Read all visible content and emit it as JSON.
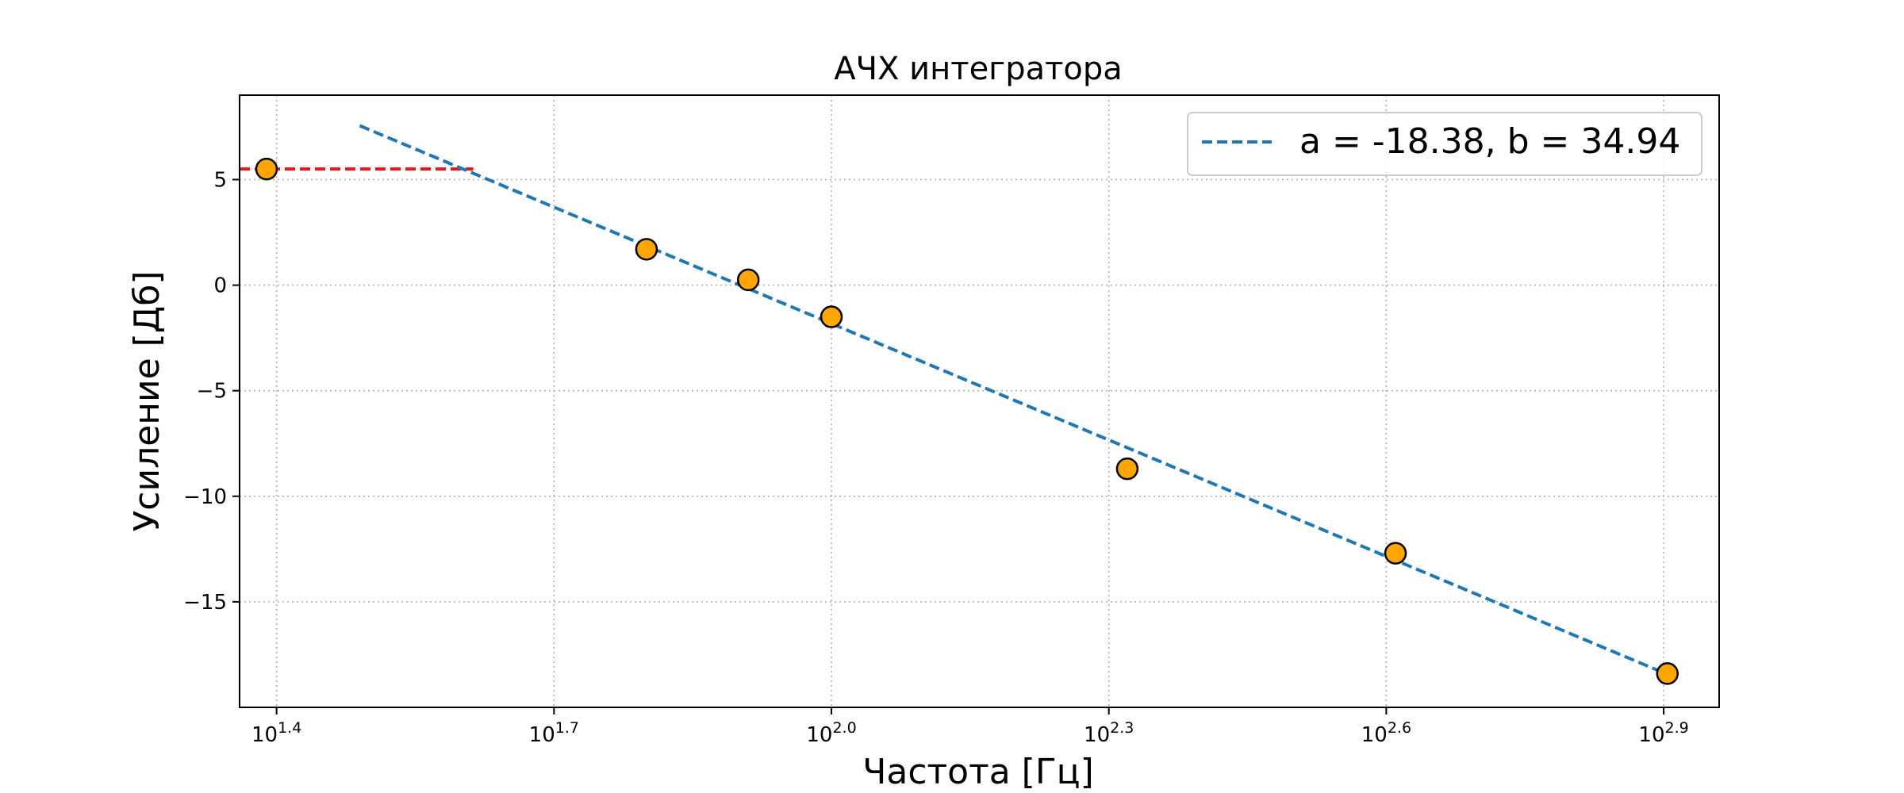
{
  "chart_data": {
    "type": "scatter",
    "title": "АЧХ интегратора",
    "xlabel": "Частота [Гц]",
    "ylabel": "Усиление [Дб]",
    "x_scale": "log10",
    "x_exponent_range": [
      1.36,
      2.96
    ],
    "ylim": [
      -20.0,
      9.0
    ],
    "x_tick_exponents": [
      "1.4",
      "1.7",
      "2.0",
      "2.3",
      "2.6",
      "2.9"
    ],
    "x_tick_base": "10",
    "y_ticks": [
      -15,
      -10,
      -5,
      0,
      5
    ],
    "y_tick_labels": [
      "−15",
      "−10",
      "−5",
      "0",
      "5"
    ],
    "grid": true,
    "points": [
      {
        "x": 24.5,
        "y": 5.5
      },
      {
        "x": 63.1,
        "y": 1.7
      },
      {
        "x": 81.3,
        "y": 0.25
      },
      {
        "x": 100.0,
        "y": -1.5
      },
      {
        "x": 208.9,
        "y": -8.7
      },
      {
        "x": 407.4,
        "y": -12.7
      },
      {
        "x": 801.7,
        "y": -18.4
      }
    ],
    "fit_line": {
      "label": "a = -18.38, b = 34.94",
      "x_range": [
        30.9,
        801.7
      ],
      "color": "#1f77b4"
    },
    "reference_line": {
      "y": 5.5,
      "x_range": [
        22.0,
        41.0
      ],
      "color": "#e31a1c"
    },
    "marker_color": "#ffa500",
    "marker_edge": "#000000",
    "legend_position": "top-right"
  }
}
